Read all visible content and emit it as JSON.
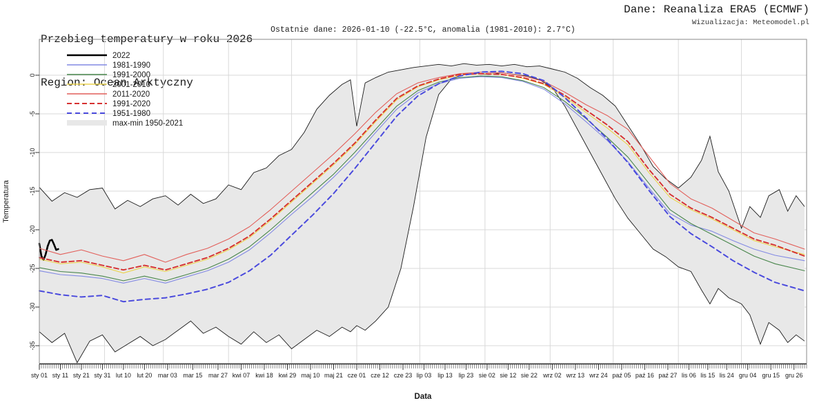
{
  "header": {
    "title": "Przebieg temperatury w roku 2026",
    "region": "Region: Ocean Arktyczny",
    "source": "Dane: Reanaliza ERA5 (ECMWF)",
    "credit": "Wizualizacja: Meteomodel.pl",
    "subtitle": "Ostatnie dane: 2026-01-10 (-22.5°C, anomalia (1981-2010): 2.7°C)"
  },
  "colors": {
    "grid": "#d9d9d9",
    "frame": "#8a8a8a",
    "axis": "#222222",
    "tick": "#333333",
    "band_fill": "#e8e8e8",
    "band_edge": "#1a1a1a",
    "text": "#1a1a1a"
  },
  "chart_data": {
    "type": "line",
    "title": "Przebieg temperatury w roku 2026",
    "xlabel": "Data",
    "ylabel": "Temperatura",
    "ylim": [
      -37.3,
      4.6
    ],
    "y_ticks": [
      0,
      -5,
      -10,
      -15,
      -20,
      -25,
      -30,
      -35
    ],
    "days_in_year": 365,
    "month_start_days": [
      31,
      59,
      90,
      120,
      151,
      181,
      212,
      243,
      273,
      304,
      334
    ],
    "x_tick_labels": [
      "sty 01",
      "sty 11",
      "sty 21",
      "sty 31",
      "lut 10",
      "lut 20",
      "mar 03",
      "mar 15",
      "mar 27",
      "kwi 07",
      "kwi 18",
      "kwi 29",
      "maj 10",
      "maj 21",
      "cze 01",
      "cze 12",
      "cze 23",
      "lip 03",
      "lip 13",
      "lip 23",
      "sie 02",
      "sie 12",
      "sie 22",
      "wrz 02",
      "wrz 13",
      "wrz 24",
      "paź 05",
      "paź 16",
      "paź 27",
      "lis 06",
      "lis 15",
      "lis 24",
      "gru 04",
      "gru 15",
      "gru 26"
    ],
    "x_tick_days": [
      0,
      10,
      20,
      30,
      40,
      50,
      61,
      73,
      85,
      96,
      107,
      118,
      129,
      140,
      151,
      162,
      173,
      183,
      193,
      203,
      213,
      223,
      233,
      244,
      255,
      266,
      277,
      288,
      299,
      309,
      318,
      327,
      337,
      348,
      359
    ],
    "legend_order": [
      "2022",
      "1981-1990",
      "1991-2000",
      "2001-2010",
      "2011-2020",
      "1991-2020",
      "1951-1980",
      "max-min 1950-2021"
    ],
    "band": {
      "name": "max-min 1950-2021",
      "days": [
        0,
        6,
        12,
        18,
        24,
        30,
        36,
        42,
        48,
        54,
        60,
        66,
        72,
        78,
        84,
        90,
        96,
        102,
        108,
        114,
        120,
        126,
        132,
        138,
        144,
        148,
        151,
        155,
        160,
        166,
        172,
        178,
        184,
        190,
        196,
        202,
        208,
        214,
        220,
        226,
        232,
        238,
        244,
        250,
        256,
        262,
        268,
        274,
        280,
        286,
        292,
        298,
        304,
        310,
        315,
        319,
        323,
        328,
        334,
        338,
        343,
        347,
        352,
        356,
        360,
        364
      ],
      "max": [
        -14.5,
        -16.3,
        -15.2,
        -15.8,
        -14.8,
        -14.6,
        -17.3,
        -16.2,
        -17.0,
        -16.0,
        -15.6,
        -16.8,
        -15.4,
        -16.6,
        -16.0,
        -14.2,
        -14.8,
        -12.6,
        -12.0,
        -10.4,
        -9.6,
        -7.4,
        -4.4,
        -2.6,
        -1.2,
        -0.6,
        -6.6,
        -1.0,
        -0.3,
        0.4,
        0.7,
        1.0,
        1.2,
        1.4,
        1.2,
        1.5,
        1.3,
        1.4,
        1.2,
        1.4,
        1.1,
        1.2,
        0.8,
        0.4,
        -0.4,
        -1.6,
        -2.6,
        -4.0,
        -6.5,
        -9.0,
        -11.8,
        -13.4,
        -14.6,
        -13.2,
        -11.0,
        -7.9,
        -12.5,
        -15.0,
        -19.8,
        -17.0,
        -18.4,
        -15.6,
        -14.8,
        -17.6,
        -15.6,
        -17.0
      ],
      "min": [
        -33.2,
        -34.6,
        -33.4,
        -37.2,
        -34.4,
        -33.6,
        -35.8,
        -34.8,
        -33.8,
        -35.0,
        -34.2,
        -33.0,
        -31.8,
        -33.4,
        -32.6,
        -33.8,
        -34.8,
        -33.2,
        -34.6,
        -33.6,
        -35.4,
        -34.2,
        -33.0,
        -33.8,
        -32.6,
        -33.2,
        -32.4,
        -33.0,
        -31.8,
        -30.0,
        -25.0,
        -17.0,
        -8.0,
        -2.5,
        -0.5,
        0.1,
        0.2,
        0.1,
        0.3,
        0.1,
        -0.1,
        -0.6,
        -1.6,
        -4.0,
        -7.0,
        -10.0,
        -13.0,
        -16.0,
        -18.5,
        -20.5,
        -22.5,
        -23.5,
        -24.8,
        -25.4,
        -27.8,
        -29.6,
        -27.6,
        -28.8,
        -29.6,
        -31.0,
        -34.8,
        -32.0,
        -33.0,
        -34.6,
        -33.6,
        -34.4
      ]
    },
    "clim_days": [
      0,
      10,
      20,
      30,
      40,
      50,
      60,
      70,
      80,
      90,
      100,
      110,
      120,
      130,
      140,
      150,
      160,
      170,
      180,
      190,
      200,
      210,
      220,
      230,
      240,
      250,
      260,
      270,
      280,
      290,
      300,
      310,
      320,
      330,
      340,
      350,
      364
    ],
    "series": [
      {
        "name": "2022",
        "color": "#000000",
        "width": 2.6,
        "dash": null,
        "days": [
          0,
          1,
          2,
          3,
          4,
          5,
          6,
          7,
          8,
          9
        ],
        "values": [
          -21.8,
          -23.4,
          -23.9,
          -23.2,
          -22.1,
          -21.4,
          -21.3,
          -21.9,
          -22.6,
          -22.5
        ]
      },
      {
        "name": "1981-1990",
        "color": "#8289e4",
        "width": 1.1,
        "dash": null,
        "values": [
          -25.3,
          -25.8,
          -26.0,
          -26.3,
          -26.9,
          -26.3,
          -26.9,
          -26.1,
          -25.3,
          -24.2,
          -22.6,
          -20.4,
          -18.0,
          -15.7,
          -13.2,
          -10.5,
          -7.4,
          -4.4,
          -2.3,
          -1.1,
          -0.4,
          -0.2,
          -0.3,
          -0.8,
          -1.8,
          -3.7,
          -6.0,
          -8.4,
          -11.2,
          -14.6,
          -17.9,
          -19.4,
          -20.2,
          -21.4,
          -22.5,
          -23.3,
          -24.0
        ]
      },
      {
        "name": "1991-2000",
        "color": "#47854a",
        "width": 1.1,
        "dash": null,
        "values": [
          -24.9,
          -25.4,
          -25.6,
          -26.0,
          -26.6,
          -26.0,
          -26.6,
          -25.8,
          -25.0,
          -23.8,
          -22.2,
          -20.0,
          -17.6,
          -15.2,
          -12.8,
          -10.0,
          -7.0,
          -4.0,
          -2.0,
          -0.9,
          -0.3,
          -0.1,
          -0.2,
          -0.7,
          -1.6,
          -3.4,
          -5.6,
          -8.0,
          -10.6,
          -14.0,
          -17.4,
          -19.2,
          -20.6,
          -22.0,
          -23.4,
          -24.4,
          -25.3
        ]
      },
      {
        "name": "2001-2010",
        "color": "#ecd44e",
        "width": 1.1,
        "dash": null,
        "values": [
          -23.8,
          -24.4,
          -24.2,
          -24.8,
          -25.6,
          -24.8,
          -25.4,
          -24.6,
          -23.8,
          -22.6,
          -21.0,
          -18.8,
          -16.4,
          -14.0,
          -11.6,
          -9.0,
          -6.0,
          -3.2,
          -1.5,
          -0.6,
          0.0,
          0.2,
          0.1,
          -0.4,
          -1.2,
          -2.8,
          -4.8,
          -6.8,
          -9.0,
          -12.6,
          -15.8,
          -17.4,
          -18.6,
          -20.0,
          -21.4,
          -22.2,
          -23.2
        ]
      },
      {
        "name": "2011-2020",
        "color": "#e25f5a",
        "width": 1.1,
        "dash": null,
        "values": [
          -22.4,
          -23.2,
          -22.6,
          -23.4,
          -24.0,
          -23.2,
          -24.2,
          -23.2,
          -22.4,
          -21.2,
          -19.6,
          -17.4,
          -15.0,
          -12.6,
          -10.2,
          -7.6,
          -4.8,
          -2.4,
          -1.0,
          -0.3,
          0.2,
          0.4,
          0.3,
          -0.1,
          -0.8,
          -2.2,
          -3.8,
          -5.2,
          -7.0,
          -10.5,
          -14.0,
          -16.0,
          -17.2,
          -18.8,
          -20.4,
          -21.2,
          -22.5
        ]
      },
      {
        "name": "1991-2020",
        "color": "#d63030",
        "width": 1.9,
        "dash": "7,4",
        "values": [
          -23.6,
          -24.2,
          -24.0,
          -24.6,
          -25.2,
          -24.6,
          -25.2,
          -24.4,
          -23.6,
          -22.4,
          -20.8,
          -18.6,
          -16.2,
          -13.8,
          -11.4,
          -8.8,
          -5.8,
          -3.0,
          -1.4,
          -0.5,
          0.1,
          0.2,
          0.1,
          -0.3,
          -1.1,
          -2.6,
          -4.5,
          -6.4,
          -8.6,
          -12.2,
          -15.4,
          -17.2,
          -18.4,
          -19.8,
          -21.2,
          -22.0,
          -23.4
        ]
      },
      {
        "name": "1951-1980",
        "color": "#4a4add",
        "width": 2.0,
        "dash": "7,5",
        "values": [
          -27.9,
          -28.4,
          -28.7,
          -28.5,
          -29.3,
          -29.0,
          -28.8,
          -28.3,
          -27.7,
          -26.8,
          -25.3,
          -23.3,
          -20.7,
          -18.1,
          -15.3,
          -12.1,
          -8.7,
          -5.3,
          -2.7,
          -1.1,
          -0.1,
          0.4,
          0.5,
          0.2,
          -0.7,
          -2.9,
          -5.5,
          -8.2,
          -11.3,
          -14.9,
          -18.3,
          -20.5,
          -22.2,
          -24.0,
          -25.5,
          -26.8,
          -27.9
        ]
      }
    ]
  }
}
